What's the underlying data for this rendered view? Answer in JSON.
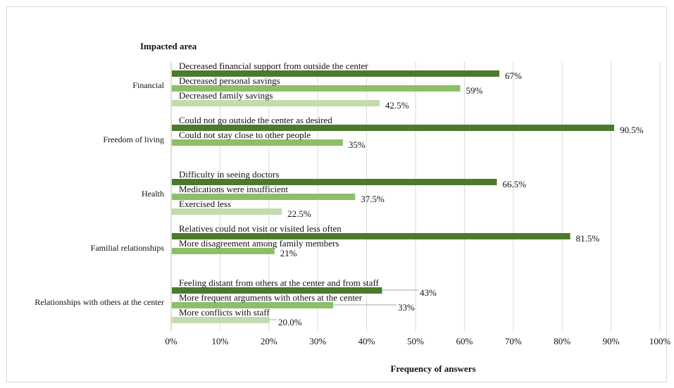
{
  "chart_data": {
    "type": "bar",
    "orientation": "horizontal",
    "title": "",
    "ylabel": "Impacted area",
    "xlabel": "Frequency of answers",
    "xlim": [
      0,
      100
    ],
    "x_ticks": [
      "0%",
      "10%",
      "20%",
      "30%",
      "40%",
      "50%",
      "60%",
      "70%",
      "80%",
      "90%",
      "100%"
    ],
    "grid": true,
    "colors": {
      "dark": "#4b7a2c",
      "medium": "#8dbe68",
      "light": "#c3dbad",
      "grid": "#d9d9d9"
    },
    "groups": [
      {
        "name": "Financial",
        "bars": [
          {
            "label": "Decreased financial support from outside the center",
            "value": 67,
            "value_label": "67%",
            "shade": "dark"
          },
          {
            "label": "Decreased personal savings",
            "value": 59,
            "value_label": "59%",
            "shade": "medium"
          },
          {
            "label": "Decreased family savings",
            "value": 42.5,
            "value_label": "42.5%",
            "shade": "light"
          }
        ]
      },
      {
        "name": "Freedom of living",
        "bars": [
          {
            "label": "Could not go outside the center as desired",
            "value": 90.5,
            "value_label": "90.5%",
            "shade": "dark"
          },
          {
            "label": "Could not stay close to other people",
            "value": 35,
            "value_label": "35%",
            "shade": "medium"
          }
        ]
      },
      {
        "name": "Health",
        "bars": [
          {
            "label": "Difficulty in seeing doctors",
            "value": 66.5,
            "value_label": "66.5%",
            "shade": "dark"
          },
          {
            "label": "Medications were insufficient",
            "value": 37.5,
            "value_label": "37.5%",
            "shade": "medium"
          },
          {
            "label": "Exercised less",
            "value": 22.5,
            "value_label": "22.5%",
            "shade": "light"
          }
        ]
      },
      {
        "name": "Familial relationships",
        "bars": [
          {
            "label": "Relatives could not visit or visited less often",
            "value": 81.5,
            "value_label": "81.5%",
            "shade": "dark"
          },
          {
            "label": "More disagreement among family members",
            "value": 21,
            "value_label": "21%",
            "shade": "medium"
          }
        ]
      },
      {
        "name": "Relationships with others at the center",
        "bars": [
          {
            "label": "Feeling distant from others at the center and from staff",
            "value": 43,
            "value_label": "43%",
            "shade": "dark",
            "leader": true
          },
          {
            "label": "More frequent arguments with others at the center",
            "value": 33,
            "value_label": "33%",
            "shade": "medium",
            "leader": true
          },
          {
            "label": "More conflicts with staff",
            "value": 20.0,
            "value_label": "20.0%",
            "shade": "light",
            "leader": true
          }
        ]
      }
    ]
  }
}
